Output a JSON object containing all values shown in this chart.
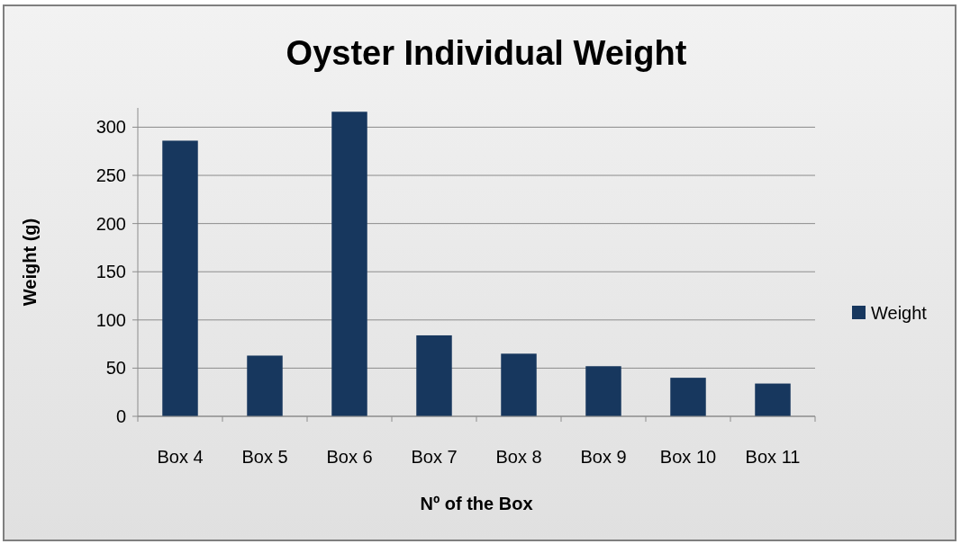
{
  "chart_data": {
    "type": "bar",
    "title": "Oyster Individual Weight",
    "xlabel": "Nº of the Box",
    "ylabel": "Weight (g)",
    "categories": [
      "Box 4",
      "Box 5",
      "Box 6",
      "Box 7",
      "Box 8",
      "Box 9",
      "Box 10",
      "Box 11"
    ],
    "series": [
      {
        "name": "Weight",
        "color": "#17375e",
        "values": [
          286,
          63,
          316,
          84,
          65,
          52,
          40,
          34
        ]
      }
    ],
    "ylim": [
      0,
      320
    ],
    "yticks": [
      0,
      50,
      100,
      150,
      200,
      250,
      300
    ],
    "grid": "y",
    "legend": "right"
  }
}
